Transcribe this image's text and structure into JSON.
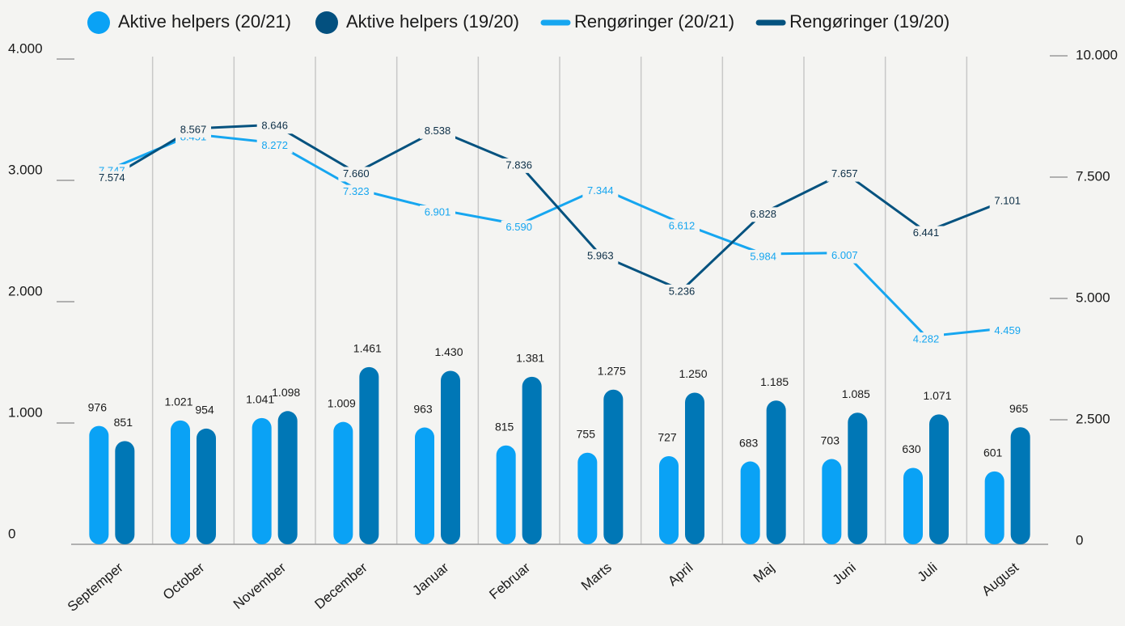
{
  "chart_data": {
    "type": "bar",
    "categories": [
      "Septemper",
      "October",
      "November",
      "December",
      "Januar",
      "Februar",
      "Marts",
      "April",
      "Maj",
      "Juni",
      "Juli",
      "August"
    ],
    "series": [
      {
        "name": "Aktive helpers (20/21)",
        "type": "bar",
        "color": "#0aa2f5",
        "values": [
          976,
          1021,
          1041,
          1009,
          963,
          815,
          755,
          727,
          683,
          703,
          630,
          601
        ],
        "value_labels": [
          "976",
          "1.021",
          "1.041",
          "1.009",
          "963",
          "815",
          "755",
          "727",
          "683",
          "703",
          "630",
          "601"
        ]
      },
      {
        "name": "Aktive helpers (19/20)",
        "type": "bar",
        "color": "#0077b6",
        "values": [
          851,
          954,
          1098,
          1461,
          1430,
          1381,
          1275,
          1250,
          1185,
          1085,
          1071,
          965
        ],
        "value_labels": [
          "851",
          "954",
          "1.098",
          "1.461",
          "1.430",
          "1.381",
          "1.275",
          "1.250",
          "1.185",
          "1.085",
          "1.071",
          "965"
        ]
      },
      {
        "name": "Rengøringer (20/21)",
        "type": "line",
        "axis": "y2",
        "color": "#16a6f0",
        "values": [
          7747,
          8451,
          8272,
          7323,
          6901,
          6590,
          7344,
          6612,
          5984,
          6007,
          4282,
          4459
        ],
        "value_labels": [
          "7.747",
          "8.451",
          "8.272",
          "7.323",
          "6.901",
          "6.590",
          "7.344",
          "6.612",
          "5.984",
          "6.007",
          "4.282",
          "4.459"
        ]
      },
      {
        "name": "Rengøringer (19/20)",
        "type": "line",
        "axis": "y2",
        "color": "#04527f",
        "values": [
          7574,
          8567,
          8646,
          7660,
          8538,
          7836,
          5963,
          5236,
          6828,
          7657,
          6441,
          7101
        ],
        "value_labels": [
          "7.574",
          "8.567",
          "8.646",
          "7.660",
          "8.538",
          "7.836",
          "5.963",
          "5.236",
          "6.828",
          "7.657",
          "6.441",
          "7.101"
        ]
      }
    ],
    "ylim": [
      0,
      4000
    ],
    "yticks": [
      0,
      {
        "value": 1000,
        "label": "1.000"
      },
      {
        "value": 2000,
        "label": "2.000"
      },
      {
        "value": 3000,
        "label": "3.000"
      },
      {
        "value": 4000,
        "label": "4.000"
      }
    ],
    "y2lim": [
      0,
      10000
    ],
    "y2ticks": [
      0,
      {
        "value": 2500,
        "label": "2.500"
      },
      {
        "value": 5000,
        "label": "5.000"
      },
      {
        "value": 7500,
        "label": "7.500"
      },
      {
        "value": 10000,
        "label": "10.000"
      }
    ],
    "legend": "top"
  }
}
